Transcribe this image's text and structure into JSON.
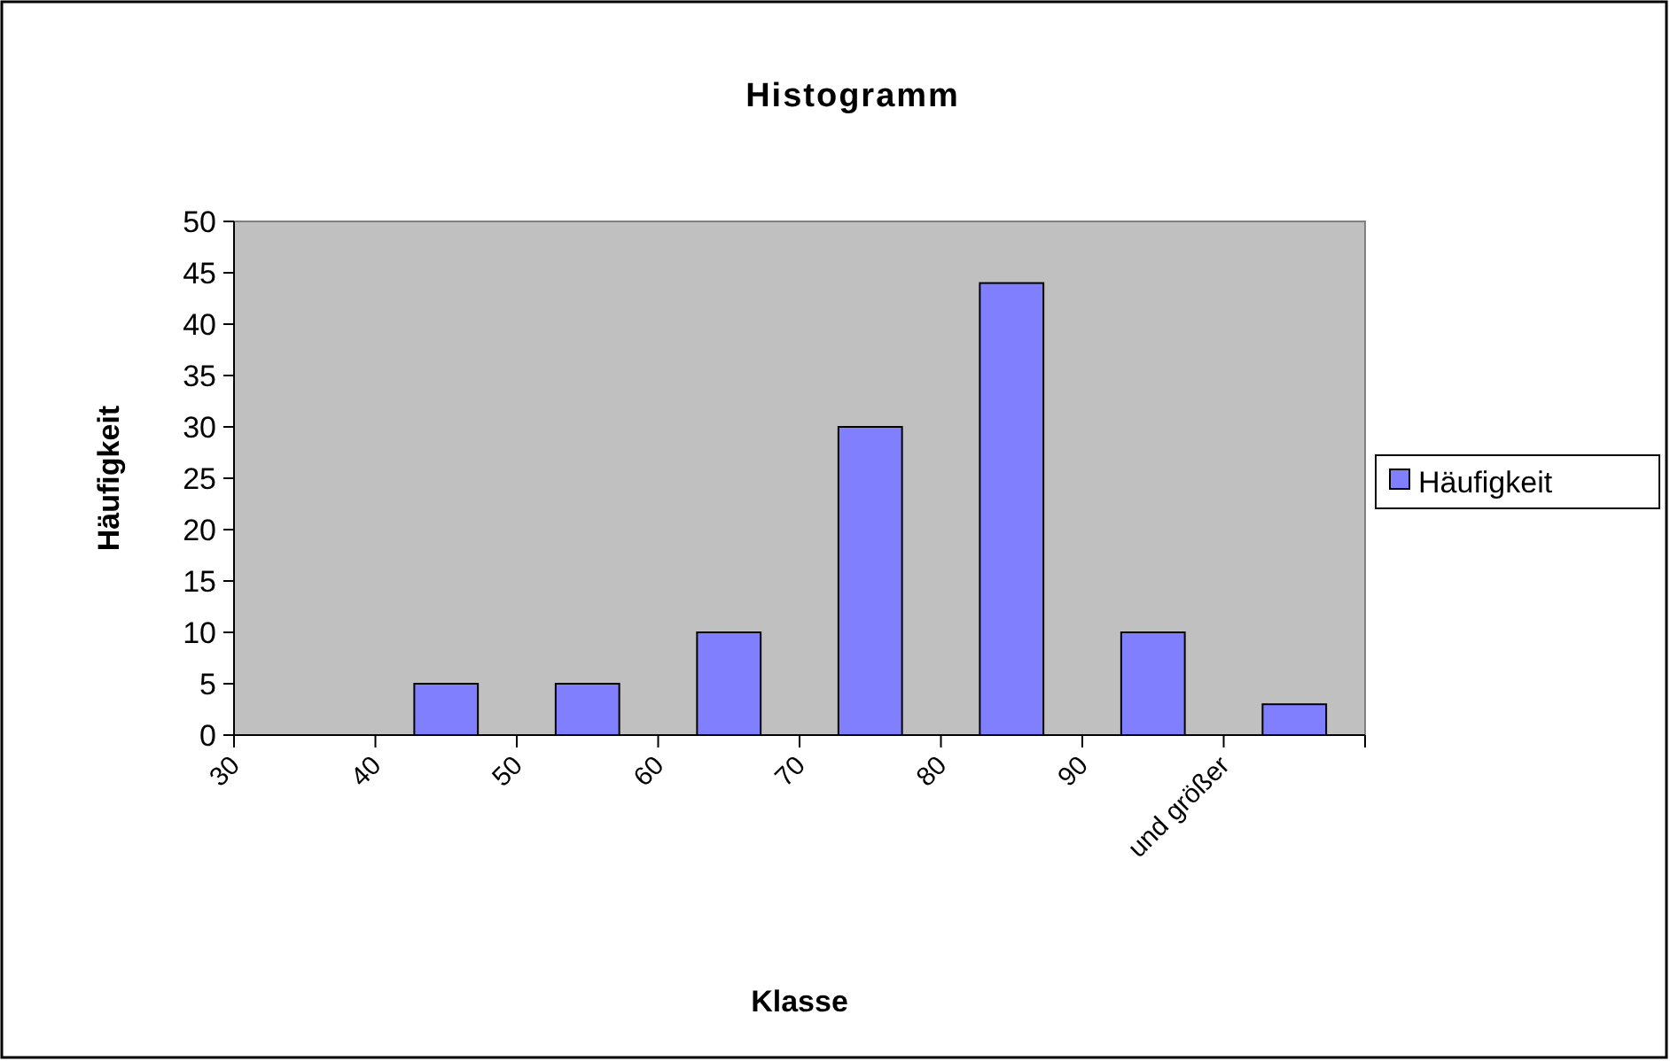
{
  "chart_data": {
    "type": "bar",
    "title": "Histogramm",
    "xlabel": "Klasse",
    "ylabel": "Häufigkeit",
    "categories": [
      "30",
      "40",
      "50",
      "60",
      "70",
      "80",
      "90",
      "und größer"
    ],
    "series": [
      {
        "name": "Häufigkeit",
        "color": "#8080ff",
        "values": [
          0,
          5,
          5,
          10,
          30,
          44,
          10,
          3
        ]
      }
    ],
    "ylim": [
      0,
      50
    ],
    "yticks": [
      0,
      5,
      10,
      15,
      20,
      25,
      30,
      35,
      40,
      45,
      50
    ],
    "grid": false,
    "legend": "right"
  }
}
